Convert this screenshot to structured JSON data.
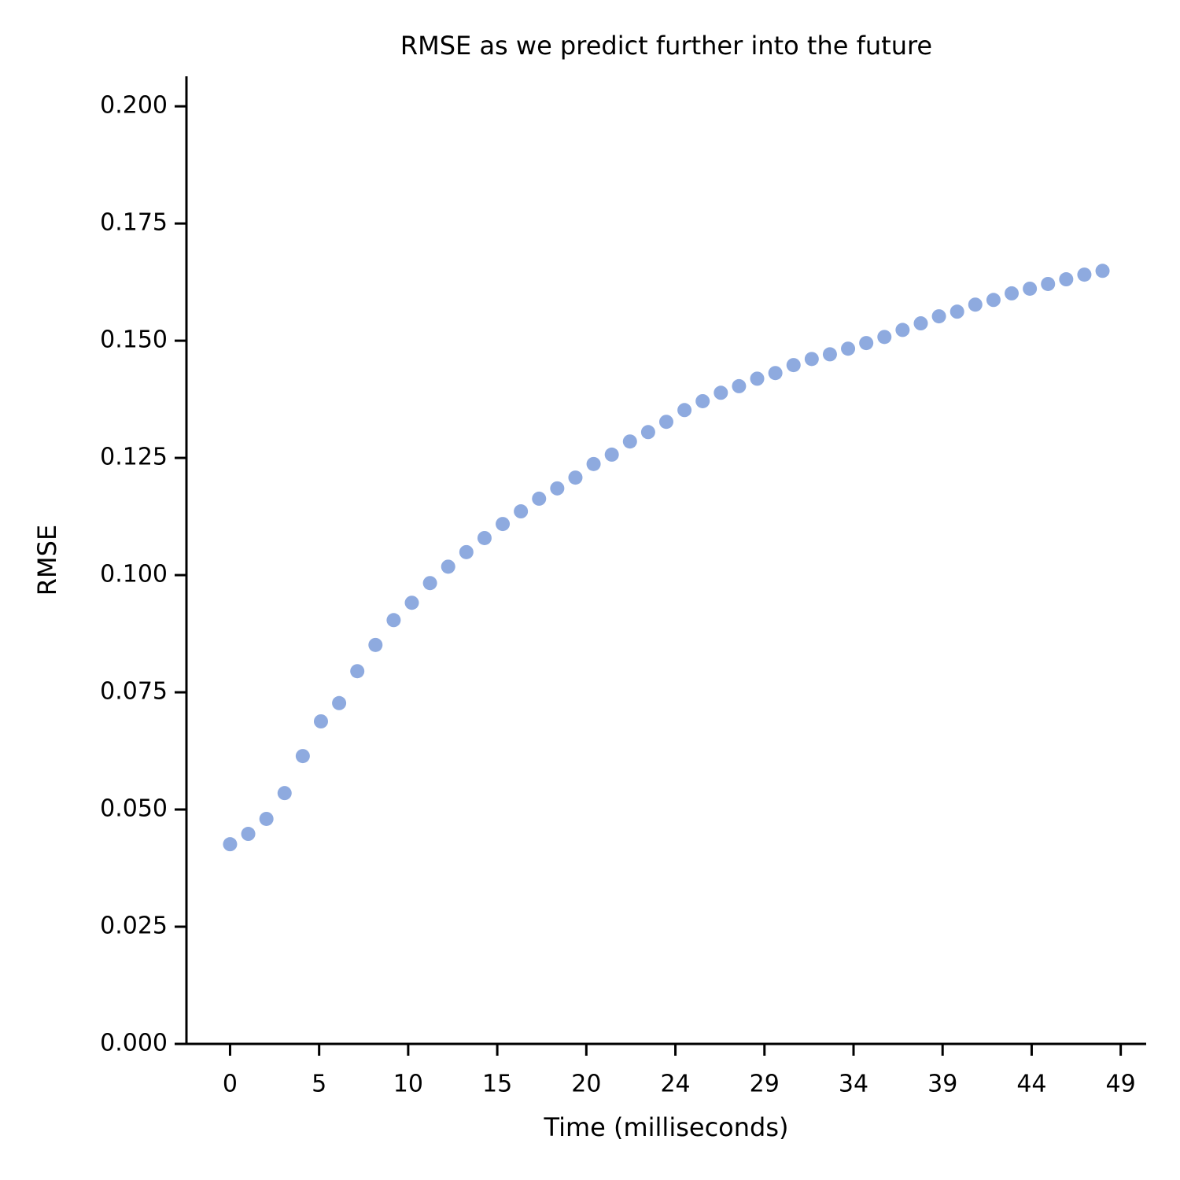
{
  "chart_data": {
    "type": "scatter",
    "title": "RMSE as we predict further into the future",
    "x_label": "Time (milliseconds)",
    "y_label": "RMSE",
    "x": [
      0,
      1,
      2,
      3,
      4,
      5,
      6,
      7,
      8,
      9,
      10,
      11,
      12,
      13,
      14,
      15,
      16,
      17,
      18,
      19,
      20,
      21,
      22,
      23,
      24,
      25,
      26,
      27,
      28,
      29,
      30,
      31,
      32,
      33,
      34,
      35,
      36,
      37,
      38,
      39,
      40,
      41,
      42,
      43,
      44,
      45,
      46,
      47,
      48
    ],
    "values": [
      0.0426,
      0.0448,
      0.048,
      0.0535,
      0.0614,
      0.0688,
      0.0727,
      0.0795,
      0.0851,
      0.0904,
      0.0941,
      0.0983,
      0.1018,
      0.1049,
      0.1079,
      0.1109,
      0.1136,
      0.1163,
      0.1185,
      0.1208,
      0.1237,
      0.1257,
      0.1285,
      0.1305,
      0.1327,
      0.1352,
      0.1371,
      0.1389,
      0.1403,
      0.1419,
      0.1431,
      0.1448,
      0.1461,
      0.1471,
      0.1483,
      0.1495,
      0.1508,
      0.1523,
      0.1537,
      0.1552,
      0.1562,
      0.1577,
      0.1587,
      0.1601,
      0.1611,
      0.1621,
      0.1631,
      0.1641,
      0.1649
    ],
    "color": "#8eaadf",
    "xlim": [
      -2.4,
      50.4
    ],
    "xticks": [
      0,
      {
        "value": 4.9,
        "label": "5"
      },
      {
        "value": 9.8,
        "label": "10"
      },
      {
        "value": 14.7,
        "label": "15"
      },
      {
        "value": 19.6,
        "label": "20"
      },
      {
        "value": 24.5,
        "label": "24"
      },
      {
        "value": 29.4,
        "label": "29"
      },
      {
        "value": 34.3,
        "label": "34"
      },
      {
        "value": 39.2,
        "label": "39"
      },
      {
        "value": 44.1,
        "label": "44"
      },
      49
    ],
    "ylim": [
      0,
      0.2064
    ],
    "yticks": [
      {
        "value": 0,
        "label": "0.000"
      },
      {
        "value": 0.025,
        "label": "0.025"
      },
      {
        "value": 0.05,
        "label": "0.050"
      },
      {
        "value": 0.075,
        "label": "0.075"
      },
      {
        "value": 0.1,
        "label": "0.100"
      },
      {
        "value": 0.125,
        "label": "0.125"
      },
      {
        "value": 0.15,
        "label": "0.150"
      },
      {
        "value": 0.175,
        "label": "0.175"
      },
      {
        "value": 0.2,
        "label": "0.200"
      }
    ],
    "grid": false
  }
}
